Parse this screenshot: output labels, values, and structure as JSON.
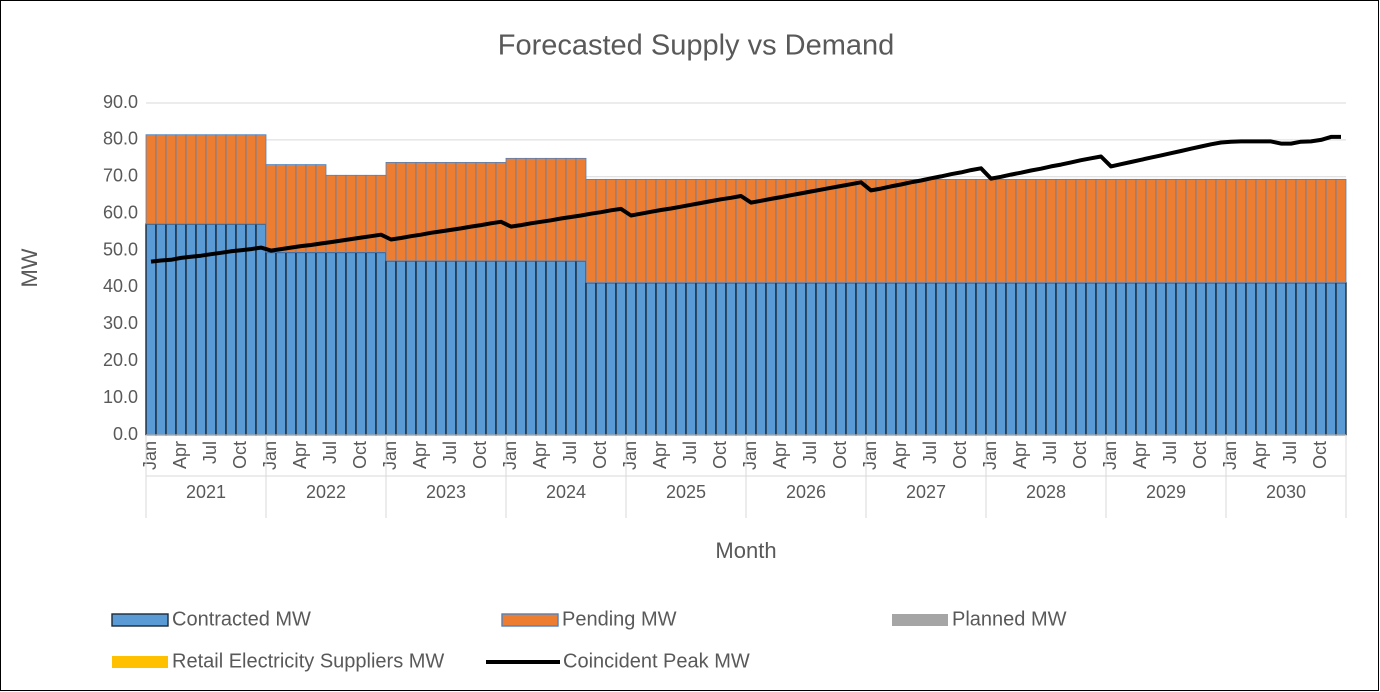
{
  "chart_data": {
    "type": "bar",
    "stacked": true,
    "title": "Forecasted Supply vs Demand",
    "y_label": "MW",
    "x_label": "Month",
    "years": [
      "2021",
      "2022",
      "2023",
      "2024",
      "2025",
      "2026",
      "2027",
      "2028",
      "2029",
      "2030"
    ],
    "categories": [
      "Jan",
      null,
      null,
      "Apr",
      null,
      null,
      "Jul",
      null,
      null,
      "Oct",
      null,
      null,
      "Jan",
      null,
      null,
      "Apr",
      null,
      null,
      "Jul",
      null,
      null,
      "Oct",
      null,
      null,
      "Jan",
      null,
      null,
      "Apr",
      null,
      null,
      "Jul",
      null,
      null,
      "Oct",
      null,
      null,
      "Jan",
      null,
      null,
      "Apr",
      null,
      null,
      "Jul",
      null,
      null,
      "Oct",
      null,
      null,
      "Jan",
      null,
      null,
      "Apr",
      null,
      null,
      "Jul",
      null,
      null,
      "Oct",
      null,
      null,
      "Jan",
      null,
      null,
      "Apr",
      null,
      null,
      "Jul",
      null,
      null,
      "Oct",
      null,
      null,
      "Jan",
      null,
      null,
      "Apr",
      null,
      null,
      "Jul",
      null,
      null,
      "Oct",
      null,
      null,
      "Jan",
      null,
      null,
      "Apr",
      null,
      null,
      "Jul",
      null,
      null,
      "Oct",
      null,
      null,
      "Jan",
      null,
      null,
      "Apr",
      null,
      null,
      "Jul",
      null,
      null,
      "Oct",
      null,
      null,
      "Jan",
      null,
      null,
      "Apr",
      null,
      null,
      "Jul",
      null,
      null,
      "Oct",
      null,
      null
    ],
    "ylim": [
      0,
      90
    ],
    "yticks": [
      {
        "value": 0,
        "label": "0.0"
      },
      {
        "value": 10,
        "label": "10.0"
      },
      {
        "value": 20,
        "label": "20.0"
      },
      {
        "value": 30,
        "label": "30.0"
      },
      {
        "value": 40,
        "label": "40.0"
      },
      {
        "value": 50,
        "label": "50.0"
      },
      {
        "value": 60,
        "label": "60.0"
      },
      {
        "value": 70,
        "label": "70.0"
      },
      {
        "value": 80,
        "label": "80.0"
      },
      {
        "value": 90,
        "label": "90.0"
      }
    ],
    "grid": true,
    "legend": "bottom",
    "series": [
      {
        "name": "Contracted MW",
        "color": "#5b9bd5",
        "values": [
          57.2,
          57.2,
          57.2,
          57.2,
          57.2,
          57.2,
          57.2,
          57.2,
          57.2,
          57.2,
          57.2,
          57.2,
          49.5,
          49.5,
          49.5,
          49.5,
          49.5,
          49.5,
          49.5,
          49.5,
          49.5,
          49.5,
          49.5,
          49.5,
          47.2,
          47.2,
          47.2,
          47.2,
          47.2,
          47.2,
          47.2,
          47.2,
          47.2,
          47.2,
          47.2,
          47.2,
          47.2,
          47.2,
          47.2,
          47.2,
          47.2,
          47.2,
          47.2,
          47.2,
          41.3,
          41.3,
          41.3,
          41.3,
          41.3,
          41.3,
          41.3,
          41.3,
          41.3,
          41.3,
          41.3,
          41.3,
          41.3,
          41.3,
          41.3,
          41.3,
          41.3,
          41.3,
          41.3,
          41.3,
          41.3,
          41.3,
          41.3,
          41.3,
          41.3,
          41.3,
          41.3,
          41.3,
          41.3,
          41.3,
          41.3,
          41.3,
          41.3,
          41.3,
          41.3,
          41.3,
          41.3,
          41.3,
          41.3,
          41.3,
          41.3,
          41.3,
          41.3,
          41.3,
          41.3,
          41.3,
          41.3,
          41.3,
          41.3,
          41.3,
          41.3,
          41.3,
          41.3,
          41.3,
          41.3,
          41.3,
          41.3,
          41.3,
          41.3,
          41.3,
          41.3,
          41.3,
          41.3,
          41.3,
          41.3,
          41.3,
          41.3,
          41.3,
          41.3,
          41.3,
          41.3,
          41.3,
          41.3,
          41.3,
          41.3,
          41.3
        ]
      },
      {
        "name": "Pending MW",
        "color": "#ed7d31",
        "values": [
          24.2,
          24.2,
          24.2,
          24.2,
          24.2,
          24.2,
          24.2,
          24.2,
          24.2,
          24.2,
          24.2,
          24.2,
          23.8,
          23.8,
          23.8,
          23.8,
          23.8,
          23.8,
          20.9,
          20.9,
          20.9,
          20.9,
          20.9,
          20.9,
          26.7,
          26.7,
          26.7,
          26.7,
          26.7,
          26.7,
          26.7,
          26.7,
          26.7,
          26.7,
          26.7,
          26.7,
          27.8,
          27.8,
          27.8,
          27.8,
          27.8,
          27.8,
          27.8,
          27.8,
          28.0,
          28.0,
          28.0,
          28.0,
          28.0,
          28.0,
          28.0,
          28.0,
          28.0,
          28.0,
          28.0,
          28.0,
          28.0,
          28.0,
          28.0,
          28.0,
          28.0,
          28.0,
          28.0,
          28.0,
          28.0,
          28.0,
          28.0,
          28.0,
          28.0,
          28.0,
          28.0,
          28.0,
          28.0,
          28.0,
          28.0,
          28.0,
          28.0,
          28.0,
          28.0,
          28.0,
          28.0,
          28.0,
          28.0,
          28.0,
          28.0,
          28.0,
          28.0,
          28.0,
          28.0,
          28.0,
          28.0,
          28.0,
          28.0,
          28.0,
          28.0,
          28.0,
          28.0,
          28.0,
          28.0,
          28.0,
          28.0,
          28.0,
          28.0,
          28.0,
          28.0,
          28.0,
          28.0,
          28.0,
          28.0,
          28.0,
          28.0,
          28.0,
          28.0,
          28.0,
          28.0,
          28.0,
          28.0,
          28.0,
          28.0,
          28.0
        ]
      },
      {
        "name": "Planned MW",
        "color": "#a5a5a5"
      },
      {
        "name": "Retail Electricity Suppliers MW",
        "color": "#ffc000"
      },
      {
        "name": "Coincident Peak MW",
        "color": "#000000",
        "type": "line",
        "values": [
          47.0,
          47.3,
          47.5,
          48.0,
          48.3,
          48.6,
          49.0,
          49.4,
          49.8,
          50.1,
          50.4,
          50.8,
          50.0,
          50.4,
          50.8,
          51.2,
          51.5,
          51.9,
          52.3,
          52.7,
          53.1,
          53.5,
          53.9,
          54.3,
          53.0,
          53.4,
          53.9,
          54.3,
          54.8,
          55.2,
          55.6,
          56.0,
          56.5,
          56.9,
          57.4,
          57.8,
          56.5,
          56.9,
          57.4,
          57.8,
          58.2,
          58.7,
          59.1,
          59.5,
          60.0,
          60.4,
          60.9,
          61.3,
          59.5,
          60.0,
          60.5,
          61.0,
          61.4,
          61.9,
          62.4,
          62.9,
          63.4,
          63.9,
          64.3,
          64.8,
          63.0,
          63.5,
          64.0,
          64.5,
          65.0,
          65.5,
          66.0,
          66.5,
          67.0,
          67.5,
          68.0,
          68.5,
          66.3,
          66.8,
          67.4,
          67.9,
          68.5,
          69.0,
          69.6,
          70.1,
          70.7,
          71.2,
          71.8,
          72.3,
          69.5,
          70.0,
          70.6,
          71.1,
          71.7,
          72.2,
          72.8,
          73.3,
          73.9,
          74.5,
          75.0,
          75.5,
          72.8,
          73.4,
          74.0,
          74.6,
          75.2,
          75.8,
          76.4,
          77.0,
          77.6,
          78.2,
          78.8,
          79.3,
          79.5,
          79.6,
          79.6,
          79.6,
          79.6,
          79.0,
          79.0,
          79.5,
          79.6,
          80.0,
          80.8,
          80.8
        ]
      }
    ]
  }
}
